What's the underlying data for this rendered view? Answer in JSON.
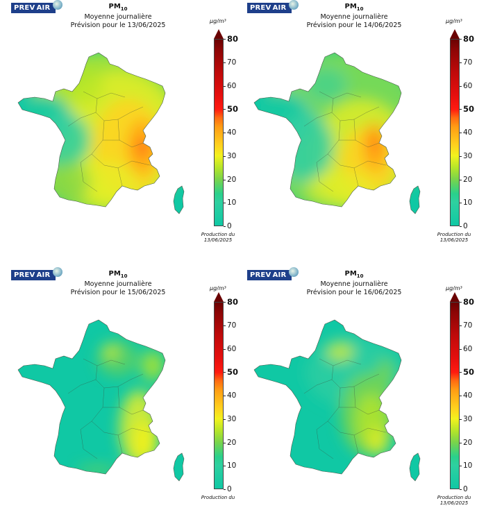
{
  "common": {
    "logo_text": "PREV AIR",
    "pollutant_main": "PM",
    "pollutant_sub": "10",
    "subtitle": "Moyenne journalière",
    "unit": "µg/m³",
    "colorbar_ticks": [
      "80",
      "70",
      "60",
      "50",
      "40",
      "30",
      "20",
      "10",
      "0"
    ]
  },
  "panels": [
    {
      "forecast": "Prévision pour le 13/06/2025",
      "production_line1": "Production du",
      "production_line2": "13/06/2025"
    },
    {
      "forecast": "Prévision pour le 14/06/2025",
      "production_line1": "Production du",
      "production_line2": "13/06/2025"
    },
    {
      "forecast": "Prévision pour le 15/06/2025",
      "production_line1": "Production du",
      "production_line2": ""
    },
    {
      "forecast": "Prévision pour le 16/06/2025",
      "production_line1": "Production du",
      "production_line2": "13/06/2025"
    }
  ],
  "colors": {
    "low": "#10c8a4",
    "mid": "#b4e52a",
    "yellow": "#f2f21e",
    "orange": "#ff9d14",
    "red": "#ff1a10",
    "darkred": "#6a0202",
    "logo_blue": "#1e3f8a"
  }
}
